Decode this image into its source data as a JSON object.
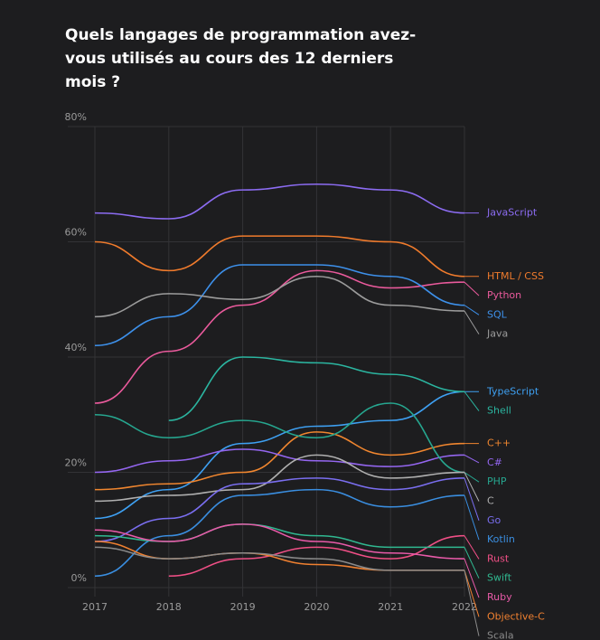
{
  "chart_data": {
    "type": "line",
    "title": "Quels langages de programmation avez-vous utilisés au cours des 12 derniers mois ?",
    "categories": [
      "2017",
      "2018",
      "2019",
      "2020",
      "2021",
      "2022"
    ],
    "ylim": [
      0,
      80
    ],
    "yticks": [
      {
        "value": 0,
        "label": "0%"
      },
      {
        "value": 20,
        "label": "20%"
      },
      {
        "value": 40,
        "label": "40%"
      },
      {
        "value": 60,
        "label": "60%"
      },
      {
        "value": 80,
        "label": "80%"
      }
    ],
    "grid": true,
    "series": [
      {
        "name": "JavaScript",
        "color": "#8c6cf2",
        "values": [
          65,
          64,
          69,
          70,
          69,
          65
        ]
      },
      {
        "name": "HTML / CSS",
        "color": "#f07b2c",
        "values": [
          60,
          55,
          61,
          61,
          60,
          54
        ]
      },
      {
        "name": "Python",
        "color": "#ea5a9c",
        "values": [
          32,
          41,
          49,
          55,
          52,
          53
        ]
      },
      {
        "name": "SQL",
        "color": "#3d90ea",
        "values": [
          42,
          47,
          56,
          56,
          54,
          49
        ]
      },
      {
        "name": "Java",
        "color": "#9c9c9c",
        "values": [
          47,
          51,
          50,
          54,
          49,
          48
        ]
      },
      {
        "name": "TypeScript",
        "color": "#3ea0f2",
        "values": [
          12,
          17,
          25,
          28,
          29,
          34
        ]
      },
      {
        "name": "Shell",
        "color": "#2bb5a0",
        "values": [
          null,
          29,
          40,
          39,
          37,
          34
        ]
      },
      {
        "name": "C++",
        "color": "#f0862f",
        "values": [
          17,
          18,
          20,
          27,
          23,
          25
        ]
      },
      {
        "name": "C#",
        "color": "#9466f0",
        "values": [
          20,
          22,
          24,
          22,
          21,
          23
        ]
      },
      {
        "name": "PHP",
        "color": "#26a68f",
        "values": [
          30,
          26,
          29,
          26,
          32,
          20
        ]
      },
      {
        "name": "C",
        "color": "#b0b0b0",
        "values": [
          15,
          16,
          17,
          23,
          19,
          20
        ]
      },
      {
        "name": "Go",
        "color": "#7a6ef0",
        "values": [
          8,
          12,
          18,
          19,
          17,
          19
        ]
      },
      {
        "name": "Kotlin",
        "color": "#3a8ee0",
        "values": [
          2,
          9,
          16,
          17,
          14,
          16
        ]
      },
      {
        "name": "Rust",
        "color": "#f04f86",
        "values": [
          null,
          2,
          5,
          7,
          5,
          9
        ]
      },
      {
        "name": "Swift",
        "color": "#30b890",
        "values": [
          9,
          8,
          11,
          9,
          7,
          7
        ]
      },
      {
        "name": "Ruby",
        "color": "#e85aa8",
        "values": [
          10,
          8,
          11,
          8,
          6,
          5
        ]
      },
      {
        "name": "Objective-C",
        "color": "#f08030",
        "values": [
          8,
          5,
          6,
          4,
          3,
          3
        ]
      },
      {
        "name": "Scala",
        "color": "#8a8a8a",
        "values": [
          7,
          5,
          6,
          5,
          3,
          3
        ]
      }
    ]
  }
}
